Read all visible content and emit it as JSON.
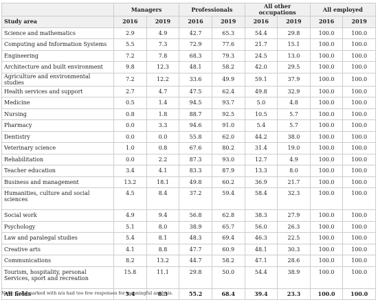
{
  "table": {
    "group_headers": [
      "Managers",
      "Professionals",
      "All other occupations",
      "All employed"
    ],
    "row_header": "Study area",
    "years": [
      "2016",
      "2019",
      "2016",
      "2019",
      "2016",
      "2019",
      "2016",
      "2019"
    ],
    "rows": [
      [
        "Science and mathematics",
        "2.9",
        "4.9",
        "42.7",
        "65.3",
        "54.4",
        "29.8",
        "100.0",
        "100.0"
      ],
      [
        "Computing and Information Systems",
        "5.5",
        "7.3",
        "72.9",
        "77.6",
        "21.7",
        "15.1",
        "100.0",
        "100.0"
      ],
      [
        "Engineering",
        "7.2",
        "7.8",
        "68.3",
        "79.3",
        "24.5",
        "13.0",
        "100.0",
        "100.0"
      ],
      [
        "Architecture and built environment",
        "9.8",
        "12.3",
        "48.1",
        "58.2",
        "42.0",
        "29.5",
        "100.0",
        "100.0"
      ],
      [
        "Agriculture and environmental studies",
        "7.2",
        "12.2",
        "33.6",
        "49.9",
        "59.1",
        "37.9",
        "100.0",
        "100.0"
      ],
      [
        "Health services and support",
        "2.7",
        "4.7",
        "47.5",
        "62.4",
        "49.8",
        "32.9",
        "100.0",
        "100.0"
      ],
      [
        "Medicine",
        "0.5",
        "1.4",
        "94.5",
        "93.7",
        "5.0",
        "4.8",
        "100.0",
        "100.0"
      ],
      [
        "Nursing",
        "0.8",
        "1.8",
        "88.7",
        "92.5",
        "10.5",
        "5.7",
        "100.0",
        "100.0"
      ],
      [
        "Pharmacy",
        "0.0",
        "3.3",
        "94.6",
        "91.0",
        "5.4",
        "5.7",
        "100.0",
        "100.0"
      ],
      [
        "Dentistry",
        "0.0",
        "0.0",
        "55.8",
        "62.0",
        "44.2",
        "38.0",
        "100.0",
        "100.0"
      ],
      [
        "Veterinary science",
        "1.0",
        "0.8",
        "67.6",
        "80.2",
        "31.4",
        "19.0",
        "100.0",
        "100.0"
      ],
      [
        "Rehabilitation",
        "0.0",
        "2.2",
        "87.3",
        "93.0",
        "12.7",
        "4.9",
        "100.0",
        "100.0"
      ],
      [
        "Teacher education",
        "3.4",
        "4.1",
        "83.3",
        "87.9",
        "13.3",
        "8.0",
        "100.0",
        "100.0"
      ],
      [
        "Business and management",
        "13.2",
        "18.1",
        "49.8",
        "60.2",
        "36.9",
        "21.7",
        "100.0",
        "100.0"
      ],
      [
        "Humanities, culture and social sciences",
        "4.5",
        "8.4",
        "37.2",
        "59.4",
        "58.4",
        "32.3",
        "100.0",
        "100.0"
      ],
      [
        "Social work",
        "4.9",
        "9.4",
        "56.8",
        "62.8",
        "38.3",
        "27.9",
        "100.0",
        "100.0"
      ],
      [
        "Psychology",
        "5.1",
        "8.0",
        "38.9",
        "65.7",
        "56.0",
        "26.3",
        "100.0",
        "100.0"
      ],
      [
        "Law and paralegal studies",
        "5.4",
        "8.1",
        "48.3",
        "69.4",
        "46.3",
        "22.5",
        "100.0",
        "100.0"
      ],
      [
        "Creative arts",
        "4.1",
        "8.8",
        "47.7",
        "60.9",
        "48.1",
        "30.3",
        "100.0",
        "100.0"
      ],
      [
        "Communications",
        "8.2",
        "13.2",
        "44.7",
        "58.2",
        "47.1",
        "28.6",
        "100.0",
        "100.0"
      ],
      [
        "Tourism, hospitality, personal Services, sport and recreation",
        "15.8",
        "11.1",
        "29.8",
        "50.0",
        "54.4",
        "38.9",
        "100.0",
        "100.0"
      ],
      [
        "All fields",
        "5.4",
        "8.3",
        "55.2",
        "68.4",
        "39.4",
        "23.3",
        "100.0",
        "100.0"
      ]
    ],
    "note": "Note: Cells marked with n/a had too few responses for meaningful analysis."
  }
}
